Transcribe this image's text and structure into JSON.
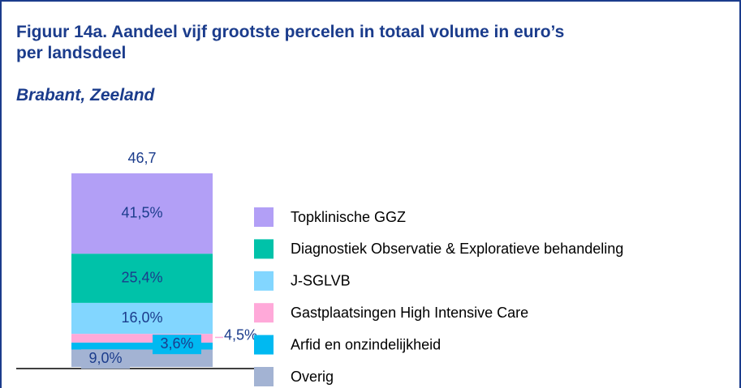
{
  "chart_data": {
    "type": "stacked-bar",
    "title": "Figuur 14a. Aandeel vijf grootste percelen in totaal volume in euro’s per landsdeel",
    "subtitle": "Brabant, Zeeland",
    "total": {
      "value": 46.7,
      "label": "46,7"
    },
    "ylim": [
      0,
      100
    ],
    "series": [
      {
        "name": "Overig",
        "color": "#a3b3d3",
        "values": [
          9.0
        ],
        "value_labels": [
          "9,0%"
        ]
      },
      {
        "name": "Arfid en onzindelijkheid",
        "color": "#00b9f1",
        "values": [
          3.6
        ],
        "value_labels": [
          "3,6%"
        ]
      },
      {
        "name": "Gastplaatsingen High Intensive Care",
        "color": "#ffa9d9",
        "values": [
          4.5
        ],
        "value_labels": [
          "4,5%"
        ]
      },
      {
        "name": "J-SGLVB",
        "color": "#82d6ff",
        "values": [
          16.0
        ],
        "value_labels": [
          "16,0%"
        ]
      },
      {
        "name": "Diagnostiek Observatie & Exploratieve behandeling",
        "color": "#00c2a9",
        "values": [
          25.4
        ],
        "value_labels": [
          "25,4%"
        ]
      },
      {
        "name": "Topklinische GGZ",
        "color": "#b29ff6",
        "values": [
          41.5
        ],
        "value_labels": [
          "41,5%"
        ]
      }
    ]
  }
}
